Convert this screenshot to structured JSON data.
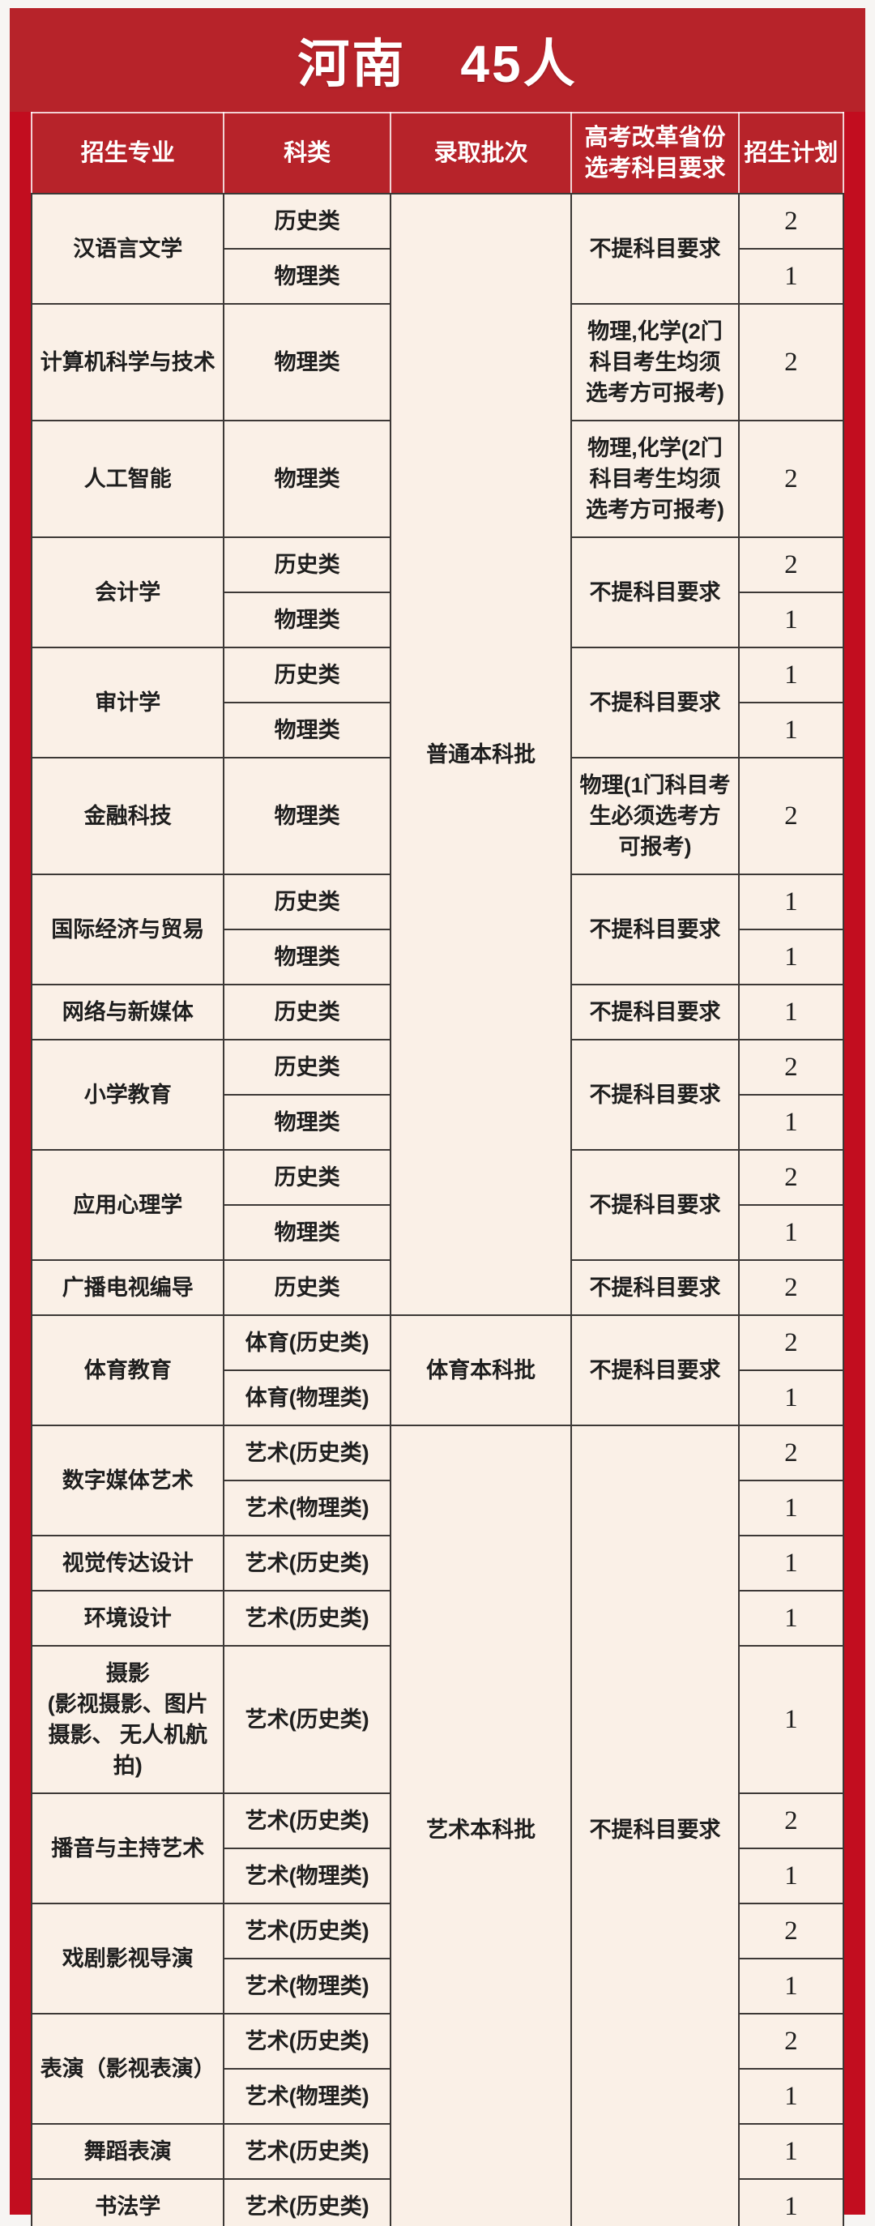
{
  "title": {
    "text": "河南　45人",
    "region": "河南",
    "count": 45,
    "count_unit": "人"
  },
  "colors": {
    "frame-red": "#c20d1f",
    "band-red": "#b7232a",
    "cell-cream": "#faf0e7",
    "grid-dark": "#3c3836",
    "text-dark": "#1e1e1e",
    "title-white": "#ffffff"
  },
  "table": {
    "headers": [
      "招生专业",
      "科类",
      "录取批次",
      "高考改革省份选考科目要求",
      "招生计划"
    ],
    "batches": [
      "普通本科批",
      "体育本科批",
      "艺术本科批"
    ],
    "rows": [
      {
        "cells": [
          {
            "k": "major",
            "t": "汉语言文学",
            "rs": 2
          },
          {
            "k": "category",
            "t": "历史类"
          },
          {
            "k": "batch",
            "t": "普通本科批",
            "rs": 17
          },
          {
            "k": "req",
            "t": "不提科目要求",
            "rs": 2
          },
          {
            "k": "plan",
            "t": "2"
          }
        ]
      },
      {
        "cells": [
          {
            "k": "category",
            "t": "物理类"
          },
          {
            "k": "plan",
            "t": "1"
          }
        ]
      },
      {
        "cells": [
          {
            "k": "major",
            "t": "计算机科学与技术"
          },
          {
            "k": "category",
            "t": "物理类"
          },
          {
            "k": "req",
            "t": "物理,化学(2门科目考生均须选考方可报考)"
          },
          {
            "k": "plan",
            "t": "2"
          }
        ]
      },
      {
        "cells": [
          {
            "k": "major",
            "t": "人工智能"
          },
          {
            "k": "category",
            "t": "物理类"
          },
          {
            "k": "req",
            "t": "物理,化学(2门科目考生均须选考方可报考)"
          },
          {
            "k": "plan",
            "t": "2"
          }
        ]
      },
      {
        "cells": [
          {
            "k": "major",
            "t": "会计学",
            "rs": 2
          },
          {
            "k": "category",
            "t": "历史类"
          },
          {
            "k": "req",
            "t": "不提科目要求",
            "rs": 2
          },
          {
            "k": "plan",
            "t": "2"
          }
        ]
      },
      {
        "cells": [
          {
            "k": "category",
            "t": "物理类"
          },
          {
            "k": "plan",
            "t": "1"
          }
        ]
      },
      {
        "cells": [
          {
            "k": "major",
            "t": "审计学",
            "rs": 2
          },
          {
            "k": "category",
            "t": "历史类"
          },
          {
            "k": "req",
            "t": "不提科目要求",
            "rs": 2
          },
          {
            "k": "plan",
            "t": "1"
          }
        ]
      },
      {
        "cells": [
          {
            "k": "category",
            "t": "物理类"
          },
          {
            "k": "plan",
            "t": "1"
          }
        ]
      },
      {
        "cells": [
          {
            "k": "major",
            "t": "金融科技"
          },
          {
            "k": "category",
            "t": "物理类"
          },
          {
            "k": "req",
            "t": "物理(1门科目考生必须选考方可报考)"
          },
          {
            "k": "plan",
            "t": "2"
          }
        ]
      },
      {
        "cells": [
          {
            "k": "major",
            "t": "国际经济与贸易",
            "rs": 2
          },
          {
            "k": "category",
            "t": "历史类"
          },
          {
            "k": "req",
            "t": "不提科目要求",
            "rs": 2
          },
          {
            "k": "plan",
            "t": "1"
          }
        ]
      },
      {
        "cells": [
          {
            "k": "category",
            "t": "物理类"
          },
          {
            "k": "plan",
            "t": "1"
          }
        ]
      },
      {
        "cells": [
          {
            "k": "major",
            "t": "网络与新媒体"
          },
          {
            "k": "category",
            "t": "历史类"
          },
          {
            "k": "req",
            "t": "不提科目要求"
          },
          {
            "k": "plan",
            "t": "1"
          }
        ]
      },
      {
        "cells": [
          {
            "k": "major",
            "t": "小学教育",
            "rs": 2
          },
          {
            "k": "category",
            "t": "历史类"
          },
          {
            "k": "req",
            "t": "不提科目要求",
            "rs": 2
          },
          {
            "k": "plan",
            "t": "2"
          }
        ]
      },
      {
        "cells": [
          {
            "k": "category",
            "t": "物理类"
          },
          {
            "k": "plan",
            "t": "1"
          }
        ]
      },
      {
        "cells": [
          {
            "k": "major",
            "t": "应用心理学",
            "rs": 2
          },
          {
            "k": "category",
            "t": "历史类"
          },
          {
            "k": "req",
            "t": "不提科目要求",
            "rs": 2
          },
          {
            "k": "plan",
            "t": "2"
          }
        ]
      },
      {
        "cells": [
          {
            "k": "category",
            "t": "物理类"
          },
          {
            "k": "plan",
            "t": "1"
          }
        ]
      },
      {
        "cells": [
          {
            "k": "major",
            "t": "广播电视编导"
          },
          {
            "k": "category",
            "t": "历史类"
          },
          {
            "k": "req",
            "t": "不提科目要求"
          },
          {
            "k": "plan",
            "t": "2"
          }
        ]
      },
      {
        "cells": [
          {
            "k": "major",
            "t": "体育教育",
            "rs": 2
          },
          {
            "k": "category",
            "t": "体育(历史类)"
          },
          {
            "k": "batch",
            "t": "体育本科批",
            "rs": 2
          },
          {
            "k": "req",
            "t": "不提科目要求",
            "rs": 2
          },
          {
            "k": "plan",
            "t": "2"
          }
        ]
      },
      {
        "cells": [
          {
            "k": "category",
            "t": "体育(物理类)"
          },
          {
            "k": "plan",
            "t": "1"
          }
        ]
      },
      {
        "cells": [
          {
            "k": "major",
            "t": "数字媒体艺术",
            "rs": 2
          },
          {
            "k": "category",
            "t": "艺术(历史类)"
          },
          {
            "k": "batch",
            "t": "艺术本科批",
            "rs": 13
          },
          {
            "k": "req",
            "t": "不提科目要求",
            "rs": 13
          },
          {
            "k": "plan",
            "t": "2"
          }
        ]
      },
      {
        "cells": [
          {
            "k": "category",
            "t": "艺术(物理类)"
          },
          {
            "k": "plan",
            "t": "1"
          }
        ]
      },
      {
        "cells": [
          {
            "k": "major",
            "t": "视觉传达设计"
          },
          {
            "k": "category",
            "t": "艺术(历史类)"
          },
          {
            "k": "plan",
            "t": "1"
          }
        ]
      },
      {
        "cells": [
          {
            "k": "major",
            "t": "环境设计"
          },
          {
            "k": "category",
            "t": "艺术(历史类)"
          },
          {
            "k": "plan",
            "t": "1"
          }
        ]
      },
      {
        "cells": [
          {
            "k": "major",
            "t": "摄影\n(影视摄影、图片摄影、 无人机航拍)"
          },
          {
            "k": "category",
            "t": "艺术(历史类)"
          },
          {
            "k": "plan",
            "t": "1"
          }
        ]
      },
      {
        "cells": [
          {
            "k": "major",
            "t": "播音与主持艺术",
            "rs": 2
          },
          {
            "k": "category",
            "t": "艺术(历史类)"
          },
          {
            "k": "plan",
            "t": "2"
          }
        ]
      },
      {
        "cells": [
          {
            "k": "category",
            "t": "艺术(物理类)"
          },
          {
            "k": "plan",
            "t": "1"
          }
        ]
      },
      {
        "cells": [
          {
            "k": "major",
            "t": "戏剧影视导演",
            "rs": 2
          },
          {
            "k": "category",
            "t": "艺术(历史类)"
          },
          {
            "k": "plan",
            "t": "2"
          }
        ]
      },
      {
        "cells": [
          {
            "k": "category",
            "t": "艺术(物理类)"
          },
          {
            "k": "plan",
            "t": "1"
          }
        ]
      },
      {
        "cells": [
          {
            "k": "major",
            "t": "表演（影视表演）",
            "rs": 2
          },
          {
            "k": "category",
            "t": "艺术(历史类)"
          },
          {
            "k": "plan",
            "t": "2"
          }
        ]
      },
      {
        "cells": [
          {
            "k": "category",
            "t": "艺术(物理类)"
          },
          {
            "k": "plan",
            "t": "1"
          }
        ]
      },
      {
        "cells": [
          {
            "k": "major",
            "t": "舞蹈表演"
          },
          {
            "k": "category",
            "t": "艺术(历史类)"
          },
          {
            "k": "plan",
            "t": "1"
          }
        ]
      },
      {
        "cells": [
          {
            "k": "major",
            "t": "书法学"
          },
          {
            "k": "category",
            "t": "艺术(历史类)"
          },
          {
            "k": "plan",
            "t": "1"
          }
        ]
      }
    ]
  }
}
